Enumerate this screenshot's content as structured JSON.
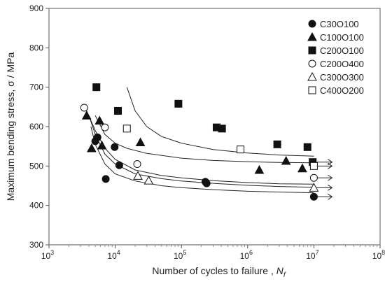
{
  "chart_data": {
    "type": "scatter",
    "xscale": "log",
    "xlabel": "Number of cycles to failure ,",
    "xlabel_symbol": "N",
    "xlabel_sub": "f",
    "ylabel": "Maximum bending stress, σ / MPa",
    "xlim": [
      1000,
      100000000
    ],
    "ylim": [
      300,
      900
    ],
    "x_ticks": [
      {
        "base": "10",
        "exp": "3"
      },
      {
        "base": "10",
        "exp": "4"
      },
      {
        "base": "10",
        "exp": "5"
      },
      {
        "base": "10",
        "exp": "6"
      },
      {
        "base": "10",
        "exp": "7"
      },
      {
        "base": "10",
        "exp": "8"
      }
    ],
    "y_ticks": [
      300,
      400,
      500,
      600,
      700,
      800,
      900
    ],
    "grid": false,
    "legend_position": "top-right",
    "series": [
      {
        "name": "C30O100",
        "marker": "circle",
        "filled": true,
        "x": [
          5000,
          5400,
          7200,
          9800,
          11500,
          230000,
          240000,
          10000000
        ],
        "y": [
          563,
          573,
          467,
          548,
          502,
          460,
          456,
          422
        ]
      },
      {
        "name": "C100O100",
        "marker": "triangle",
        "filled": true,
        "x": [
          3700,
          4400,
          5800,
          6300,
          24000,
          1500000,
          3800000,
          6700000
        ],
        "y": [
          628,
          545,
          615,
          552,
          560,
          490,
          513,
          494
        ]
      },
      {
        "name": "C200O100",
        "marker": "square",
        "filled": true,
        "x": [
          5200,
          11000,
          90000,
          340000,
          410000,
          2800000,
          8000000,
          9600000
        ],
        "y": [
          700,
          640,
          658,
          598,
          595,
          555,
          548,
          510
        ]
      },
      {
        "name": "C200O400",
        "marker": "circle",
        "filled": false,
        "x": [
          3400,
          7000,
          21500,
          10000000
        ],
        "y": [
          648,
          598,
          505,
          470
        ]
      },
      {
        "name": "C300O300",
        "marker": "triangle",
        "filled": false,
        "x": [
          22000,
          32000,
          10000000
        ],
        "y": [
          475,
          463,
          445
        ]
      },
      {
        "name": "C400O200",
        "marker": "square",
        "filled": false,
        "x": [
          15000,
          780000,
          10000000
        ],
        "y": [
          595,
          542,
          500
        ]
      }
    ],
    "fit_curves": [
      {
        "x": [
          4300,
          5000,
          7000,
          10000,
          20000,
          50000,
          100000,
          300000,
          1000000,
          3000000,
          10000000
        ],
        "y": [
          600,
          555,
          505,
          480,
          462,
          450,
          445,
          440,
          436,
          434,
          432
        ]
      },
      {
        "x": [
          4000,
          5000,
          7000,
          10000,
          20000,
          50000,
          100000,
          300000,
          1000000,
          3000000,
          10000000
        ],
        "y": [
          628,
          580,
          530,
          505,
          480,
          468,
          462,
          456,
          451,
          448,
          446
        ]
      },
      {
        "x": [
          3700,
          5000,
          7000,
          10000,
          20000,
          50000,
          100000,
          300000,
          1000000,
          3000000,
          10000000
        ],
        "y": [
          640,
          590,
          545,
          517,
          490,
          476,
          470,
          463,
          458,
          455,
          454
        ]
      },
      {
        "x": [
          5000,
          7000,
          10000,
          15000,
          30000,
          100000,
          300000,
          1000000,
          3000000,
          10000000
        ],
        "y": [
          628,
          580,
          558,
          545,
          532,
          520,
          514,
          511,
          509,
          508
        ]
      },
      {
        "x": [
          15000,
          20000,
          30000,
          50000,
          100000,
          300000,
          1000000,
          3000000,
          10000000
        ],
        "y": [
          700,
          640,
          600,
          575,
          558,
          542,
          533,
          528,
          525
        ]
      }
    ],
    "runout_arrows": [
      {
        "x": 10000000,
        "y": 422
      },
      {
        "x": 10000000,
        "y": 445
      },
      {
        "x": 10000000,
        "y": 470
      },
      {
        "x": 10000000,
        "y": 500
      },
      {
        "x": 10000000,
        "y": 510
      }
    ]
  }
}
